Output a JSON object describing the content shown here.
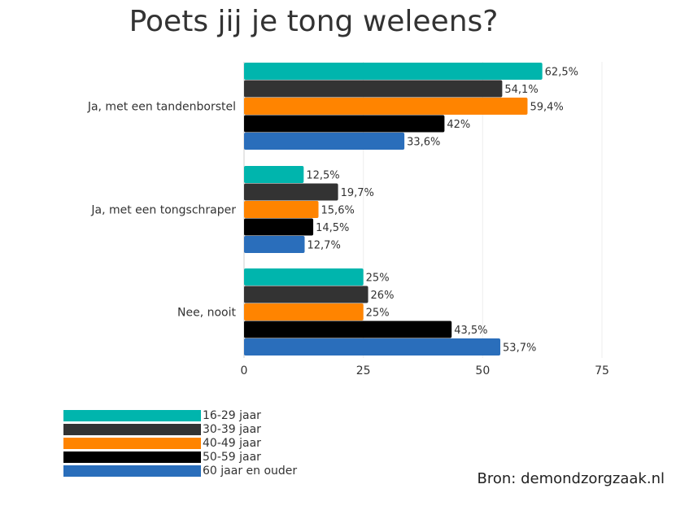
{
  "chart_data": {
    "type": "bar",
    "orientation": "horizontal",
    "title": "Poets jij je tong weleens?",
    "categories": [
      "Ja, met een tandenborstel",
      "Ja, met een tongschraper",
      "Nee, nooit"
    ],
    "series": [
      {
        "name": "16-29 jaar",
        "color": "#00b5ad",
        "values": [
          62.5,
          12.5,
          25
        ],
        "labels": [
          "62,5%",
          "12,5%",
          "25%"
        ]
      },
      {
        "name": "30-39 jaar",
        "color": "#333333",
        "values": [
          54.1,
          19.7,
          26
        ],
        "labels": [
          "54,1%",
          "19,7%",
          "26%"
        ]
      },
      {
        "name": "40-49 jaar",
        "color": "#ff8400",
        "values": [
          59.4,
          15.6,
          25
        ],
        "labels": [
          "59,4%",
          "15,6%",
          "25%"
        ]
      },
      {
        "name": "50-59 jaar",
        "color": "#000000",
        "values": [
          42,
          14.5,
          43.5
        ],
        "labels": [
          "42%",
          "14,5%",
          "43,5%"
        ]
      },
      {
        "name": "60 jaar en ouder",
        "color": "#2a6ebb",
        "values": [
          33.6,
          12.7,
          53.7
        ],
        "labels": [
          "33,6%",
          "12,7%",
          "53,7%"
        ]
      }
    ],
    "xticks": [
      0,
      25,
      50,
      75
    ],
    "xlim": [
      0,
      75
    ],
    "grid": true,
    "legend_position": "bottom-left",
    "xlabel": "",
    "ylabel": ""
  },
  "source_text": "Bron: demondzorgzaak.nl"
}
